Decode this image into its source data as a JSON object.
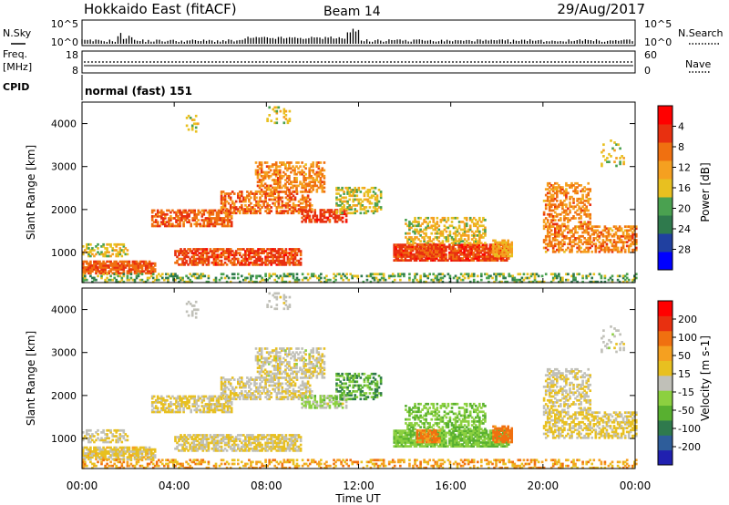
{
  "header": {
    "title": "Hokkaido East (fitACF)",
    "beam": "Beam 14",
    "date": "29/Aug/2017"
  },
  "nsky_panel": {
    "left_label": "N.Sky",
    "right_label": "N.Search",
    "left_ticks": [
      "10^5",
      "10^0"
    ],
    "right_ticks": [
      "10^5",
      "10^0"
    ]
  },
  "freq_panel": {
    "left_label_line1": "Freq.",
    "left_label_line2": "[MHz]",
    "right_label": "Nave",
    "left_ticks": [
      "18",
      "8"
    ],
    "right_ticks": [
      "60",
      "0"
    ]
  },
  "cpid_panel": {
    "label": "CPID",
    "text": "normal (fast) 151"
  },
  "chart_data": [
    {
      "type": "heatmap",
      "name": "power",
      "ylabel": "Slant Range [km]",
      "yticks": [
        "1000",
        "2000",
        "3000",
        "4000"
      ],
      "ylim": [
        300,
        4500
      ],
      "xlim": [
        0,
        24
      ],
      "colorbar": {
        "label": "Power [dB]",
        "ticks": [
          "4",
          "8",
          "12",
          "16",
          "20",
          "24",
          "28"
        ],
        "colors": [
          "#0000ff",
          "#2040a0",
          "#2f7a4d",
          "#4aa150",
          "#e8c020",
          "#f5a020",
          "#f07010",
          "#e83010",
          "#ff0000"
        ]
      }
    },
    {
      "type": "heatmap",
      "name": "velocity",
      "ylabel": "Slant Range [km]",
      "yticks": [
        "1000",
        "2000",
        "3000",
        "4000"
      ],
      "ylim": [
        300,
        4500
      ],
      "xlim": [
        0,
        24
      ],
      "colorbar": {
        "label": "Velocity [m s-1]",
        "ticks": [
          "200",
          "100",
          "50",
          "15",
          "-15",
          "-50",
          "-100",
          "-200"
        ],
        "colors": [
          "#2020b0",
          "#2e5d9a",
          "#2f7a4d",
          "#58b030",
          "#8cd040",
          "#c0c0b8",
          "#e8c020",
          "#f5a020",
          "#f07010",
          "#e83010",
          "#ff0000"
        ]
      }
    }
  ],
  "x_axis": {
    "ticks": [
      "00:00",
      "04:00",
      "08:00",
      "12:00",
      "16:00",
      "20:00",
      "00:00"
    ],
    "label": "Time UT"
  }
}
